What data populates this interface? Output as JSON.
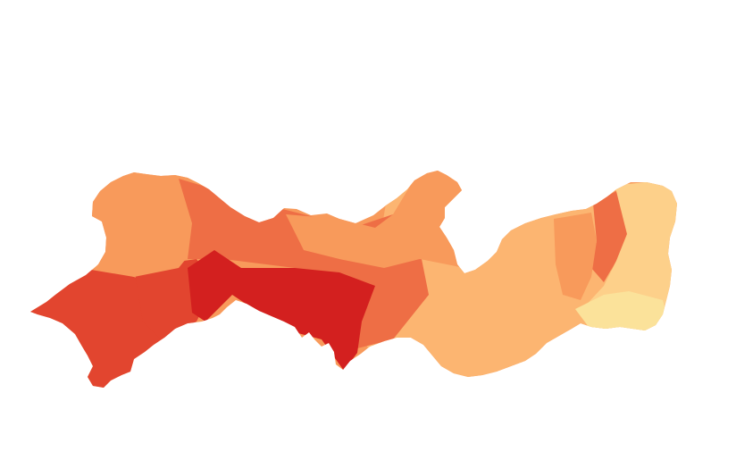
{
  "map": {
    "type": "choropleth",
    "palette": [
      "#fbe29a",
      "#fdd08a",
      "#fcb571",
      "#f89a5b",
      "#ee6e45",
      "#e2452f",
      "#d3201f"
    ],
    "background": "#ffffff",
    "zones": [
      {
        "id": "far-west",
        "class": 5
      },
      {
        "id": "west-south",
        "class": 5
      },
      {
        "id": "west-north",
        "class": 3
      },
      {
        "id": "west-center",
        "class": 4
      },
      {
        "id": "center-south",
        "class": 6
      },
      {
        "id": "center-north",
        "class": 3
      },
      {
        "id": "center-east",
        "class": 4
      },
      {
        "id": "agreste",
        "class": 2
      },
      {
        "id": "mata-east",
        "class": 3
      },
      {
        "id": "mata-strip",
        "class": 4
      },
      {
        "id": "coast",
        "class": 1
      },
      {
        "id": "coast-south",
        "class": 0
      }
    ]
  }
}
